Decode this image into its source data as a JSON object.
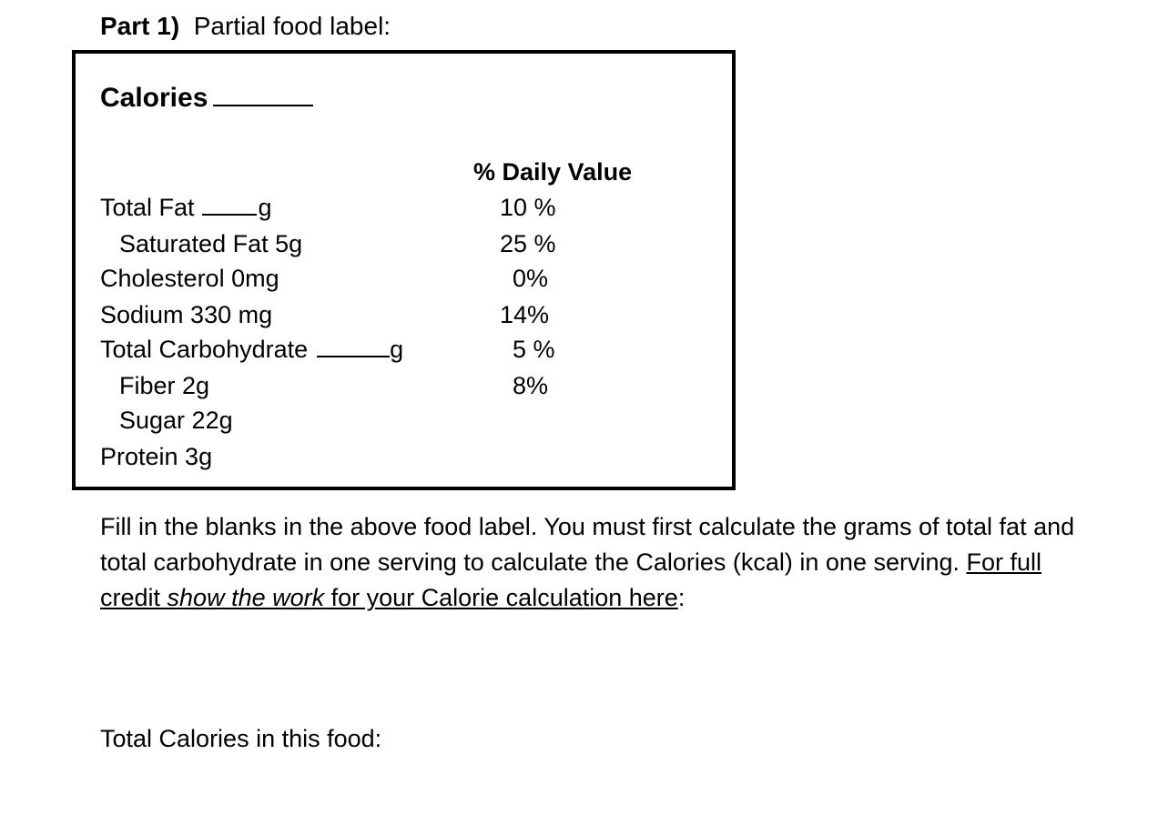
{
  "heading": {
    "part": "Part 1)",
    "title": "Partial food label:"
  },
  "label": {
    "calories_label": "Calories",
    "dv_header": "% Daily Value",
    "nutrients": [
      {
        "name": "Total Fat",
        "unit": "g",
        "dv": "10 %"
      },
      {
        "name": "Saturated Fat 5g",
        "dv": "25 %"
      },
      {
        "name": "Cholesterol 0mg",
        "dv": "0%"
      },
      {
        "name": "Sodium 330 mg",
        "dv": "14%"
      },
      {
        "name": "Total Carbohydrate",
        "unit": "g",
        "dv": "5 %"
      },
      {
        "name": "Fiber 2g",
        "dv": "8%"
      },
      {
        "name": "Sugar 22g"
      },
      {
        "name": "Protein 3g"
      }
    ]
  },
  "instructions": {
    "text_1": "Fill in the blanks in the above food label. You must first calculate the grams of total fat and total carbohydrate in one serving to calculate the Calories (kcal) in one serving. ",
    "link_1": "For full credit ",
    "link_2": "show the work",
    "link_3": " for your Calorie calculation here",
    "text_2": ":"
  },
  "total_calories_label": "Total Calories in this food:"
}
